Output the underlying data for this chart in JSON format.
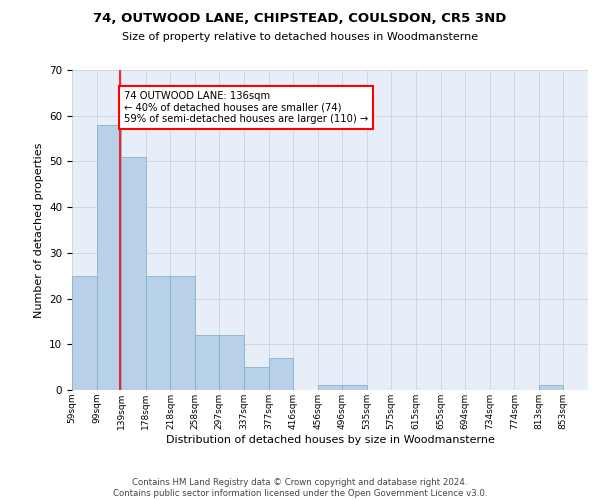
{
  "title": "74, OUTWOOD LANE, CHIPSTEAD, COULSDON, CR5 3ND",
  "subtitle": "Size of property relative to detached houses in Woodmansterne",
  "xlabel": "Distribution of detached houses by size in Woodmansterne",
  "ylabel": "Number of detached properties",
  "bin_labels": [
    "59sqm",
    "99sqm",
    "139sqm",
    "178sqm",
    "218sqm",
    "258sqm",
    "297sqm",
    "337sqm",
    "377sqm",
    "416sqm",
    "456sqm",
    "496sqm",
    "535sqm",
    "575sqm",
    "615sqm",
    "655sqm",
    "694sqm",
    "734sqm",
    "774sqm",
    "813sqm",
    "853sqm"
  ],
  "bin_edges": [
    59,
    99,
    139,
    178,
    218,
    258,
    297,
    337,
    377,
    416,
    456,
    496,
    535,
    575,
    615,
    655,
    694,
    734,
    774,
    813,
    853
  ],
  "bar_heights": [
    25,
    58,
    51,
    25,
    25,
    12,
    12,
    5,
    7,
    0,
    1,
    1,
    0,
    0,
    0,
    0,
    0,
    0,
    0,
    1,
    0
  ],
  "bar_color": "#b8d0e8",
  "bar_edge_color": "#7aaac8",
  "grid_color": "#c8d4e4",
  "background_color": "#e8eef8",
  "red_line_x": 136,
  "annotation_text": "74 OUTWOOD LANE: 136sqm\n← 40% of detached houses are smaller (74)\n59% of semi-detached houses are larger (110) →",
  "annotation_box_color": "white",
  "annotation_box_edge_color": "red",
  "ylim": [
    0,
    70
  ],
  "yticks": [
    0,
    10,
    20,
    30,
    40,
    50,
    60,
    70
  ],
  "footer_line1": "Contains HM Land Registry data © Crown copyright and database right 2024.",
  "footer_line2": "Contains public sector information licensed under the Open Government Licence v3.0."
}
